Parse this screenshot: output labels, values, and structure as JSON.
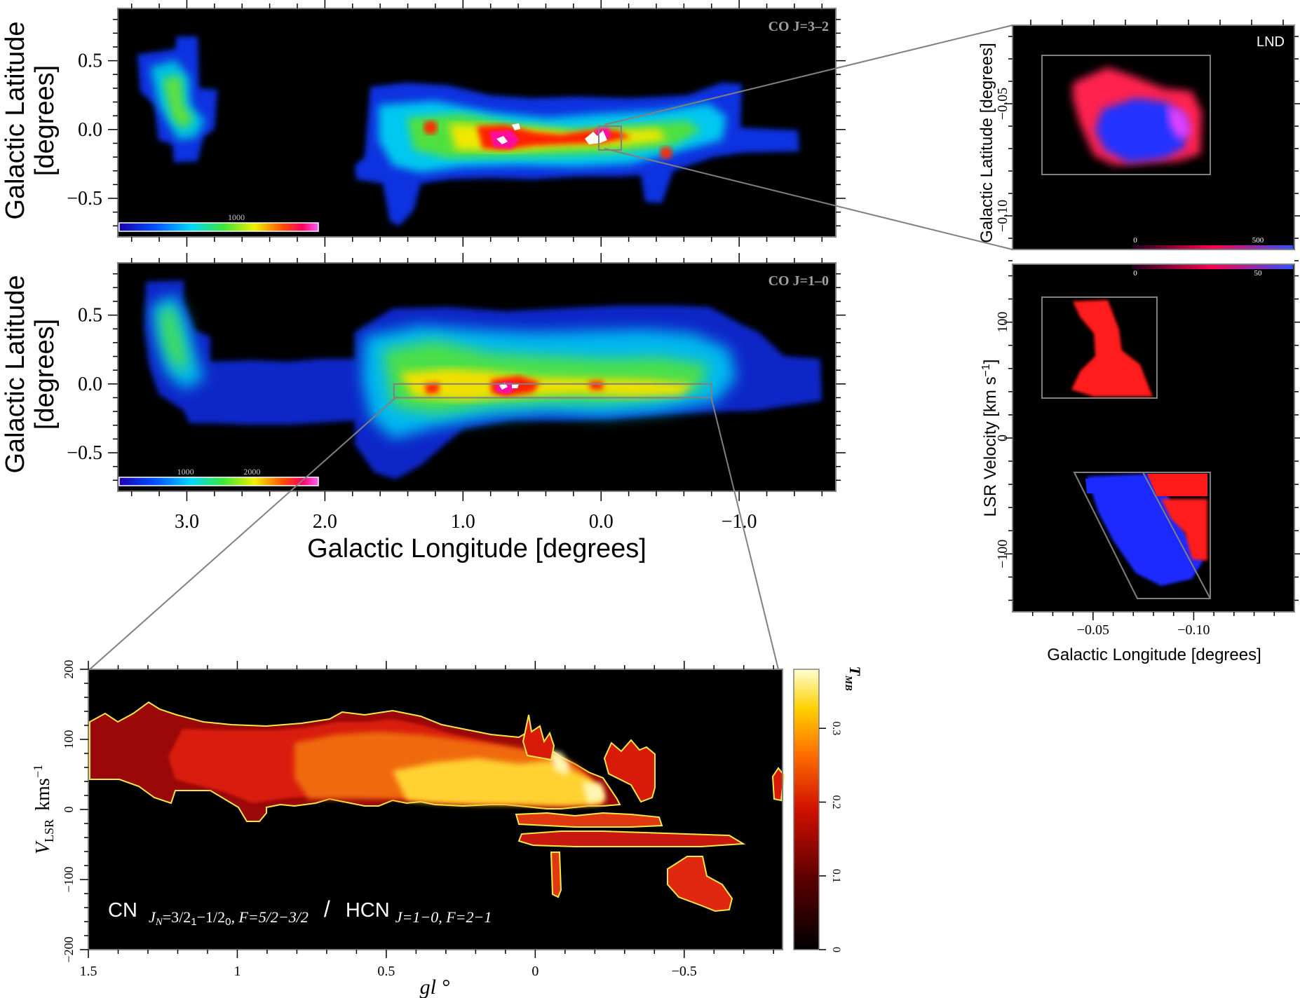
{
  "chart_data": [
    {
      "id": "co32",
      "type": "heatmap",
      "label": "CO J=3–2",
      "ylabel_line1": "Galactic Latitude",
      "ylabel_line2": "[degrees]",
      "x_range": [
        3.5,
        -1.7
      ],
      "y_range": [
        -0.78,
        0.88
      ],
      "y_ticks": [
        "0.5",
        "0.0",
        "−0.5"
      ],
      "y_tick_values": [
        0.5,
        0.0,
        -0.5
      ],
      "colorbar_ticks": [
        "1000"
      ],
      "colorbar_tick_values": [
        1000
      ],
      "colorbar_max": 1700
    },
    {
      "id": "co10",
      "type": "heatmap",
      "label": "CO J=1–0",
      "ylabel_line1": "Galactic Latitude",
      "ylabel_line2": "[degrees]",
      "xlabel": "Galactic Longitude  [degrees]",
      "x_range": [
        3.5,
        -1.7
      ],
      "y_range": [
        -0.78,
        0.88
      ],
      "x_ticks": [
        "3.0",
        "2.0",
        "1.0",
        "0.0",
        "−1.0"
      ],
      "x_tick_values": [
        3.0,
        2.0,
        1.0,
        0.0,
        -1.0
      ],
      "y_ticks": [
        "0.5",
        "0.0",
        "−0.5"
      ],
      "y_tick_values": [
        0.5,
        0.0,
        -0.5
      ],
      "colorbar_ticks": [
        "1000",
        "2000"
      ],
      "colorbar_tick_values": [
        1000,
        2000
      ],
      "colorbar_max": 3000,
      "inset_box": {
        "l_range": [
          1.5,
          -0.8
        ],
        "b_range": [
          -0.1,
          0.0
        ]
      }
    },
    {
      "id": "lnd_map",
      "type": "heatmap",
      "label": "LND",
      "ylabel": "Galactic Latitude  [degrees]",
      "y_ticks": [
        "−0.05",
        "−0.10"
      ],
      "y_tick_values": [
        -0.05,
        -0.1
      ],
      "colorbar_ticks": [
        "0",
        "500"
      ],
      "colorbar_tick_values": [
        0,
        500
      ]
    },
    {
      "id": "lnd_pv",
      "type": "heatmap",
      "ylabel": "LSR Velocity  [km s",
      "ylabel_sup": "−1",
      "ylabel_end": "]",
      "xlabel": "Galactic Longitude  [degrees]",
      "x_ticks": [
        "−0.05",
        "−0.10"
      ],
      "x_tick_values": [
        -0.05,
        -0.1
      ],
      "y_ticks": [
        "100",
        "0",
        "−100"
      ],
      "y_tick_values": [
        100,
        0,
        -100
      ],
      "colorbar_ticks": [
        "0",
        "50"
      ],
      "colorbar_tick_values": [
        0,
        50
      ]
    },
    {
      "id": "cn_hcn",
      "type": "heatmap",
      "title": "CN",
      "title_sub1": "J",
      "title_sub1b": "N",
      "title_sub1c": "=3/2",
      "title_sub1d": "1",
      "title_sub1e": "−1/2",
      "title_sub1f": "0",
      "title_sub1g": ", F=5/2−3/2",
      "title_sep": "/",
      "title2": "HCN",
      "title_sub2": "J=1−0, F=2−1",
      "xlabel": "gl °",
      "ylabel_main": "V",
      "ylabel_sub": "LSR",
      "ylabel_unit": "kms",
      "ylabel_sup": "−1",
      "x_range": [
        1.5,
        -0.83
      ],
      "y_range": [
        -200,
        200
      ],
      "x_ticks": [
        "1.5",
        "1",
        "0.5",
        "0",
        "−0.5"
      ],
      "x_tick_values": [
        1.5,
        1,
        0.5,
        0,
        -0.5
      ],
      "y_ticks": [
        "200",
        "100",
        "0",
        "−100",
        "−200"
      ],
      "y_tick_values": [
        200,
        100,
        0,
        -100,
        -200
      ],
      "colorbar_label": "T",
      "colorbar_label_sub": "MB",
      "colorbar_ticks": [
        "0",
        "0.1",
        "0.2",
        "0.3"
      ],
      "colorbar_tick_values": [
        0,
        0.1,
        0.2,
        0.3
      ],
      "colorbar_range": [
        0,
        0.38
      ]
    }
  ],
  "colors": {
    "background": "#ffffff",
    "panel": "#000000",
    "frame": "#808080",
    "contour": "#f5e94a"
  }
}
